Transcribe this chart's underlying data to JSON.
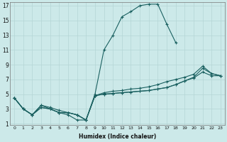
{
  "xlabel": "Humidex (Indice chaleur)",
  "bg_color": "#cce9e9",
  "grid_color": "#b5d5d5",
  "line_color": "#1a6060",
  "xlim_min": -0.5,
  "xlim_max": 23.5,
  "ylim_min": 0.8,
  "ylim_max": 17.5,
  "yticks": [
    1,
    3,
    5,
    7,
    9,
    11,
    13,
    15,
    17
  ],
  "xticks": [
    0,
    1,
    2,
    3,
    4,
    5,
    6,
    7,
    8,
    9,
    10,
    11,
    12,
    13,
    14,
    15,
    16,
    17,
    18,
    19,
    20,
    21,
    22,
    23
  ],
  "curves": [
    {
      "x": [
        0,
        1,
        2,
        3,
        4,
        5,
        6,
        7,
        8,
        9,
        10,
        11,
        12,
        13,
        14,
        15,
        16,
        17,
        18
      ],
      "y": [
        4.5,
        3.0,
        2.2,
        3.5,
        3.0,
        2.5,
        2.2,
        1.5,
        1.5,
        5.0,
        11.0,
        13.0,
        15.5,
        16.2,
        17.0,
        17.2,
        17.2,
        14.5,
        12.0
      ]
    },
    {
      "x": [
        0,
        1,
        2,
        3,
        4,
        5,
        6,
        7,
        8,
        9,
        10,
        11,
        12,
        13,
        14,
        15,
        16,
        17,
        18,
        19,
        20,
        21,
        22,
        23
      ],
      "y": [
        4.5,
        3.0,
        2.2,
        3.2,
        3.0,
        2.5,
        2.5,
        2.2,
        1.5,
        4.8,
        5.0,
        5.1,
        5.2,
        5.3,
        5.4,
        5.5,
        5.7,
        5.9,
        6.3,
        6.8,
        7.3,
        8.5,
        7.8,
        7.5
      ]
    },
    {
      "x": [
        0,
        1,
        2,
        3,
        4,
        5,
        6,
        7,
        8,
        9,
        10,
        11,
        12,
        13,
        14,
        15,
        16,
        17,
        18,
        19,
        20,
        21,
        22,
        23
      ],
      "y": [
        4.5,
        3.0,
        2.2,
        3.2,
        3.0,
        2.5,
        2.5,
        2.2,
        1.5,
        4.8,
        5.0,
        5.1,
        5.2,
        5.3,
        5.4,
        5.5,
        5.7,
        5.9,
        6.3,
        6.8,
        7.2,
        8.0,
        7.5,
        7.5
      ]
    },
    {
      "x": [
        0,
        1,
        2,
        3,
        4,
        5,
        6,
        7,
        8,
        9,
        10,
        11,
        12,
        13,
        14,
        15,
        16,
        17,
        18,
        19,
        20,
        21,
        22,
        23
      ],
      "y": [
        4.5,
        3.0,
        2.2,
        3.5,
        3.2,
        2.8,
        2.5,
        2.2,
        1.5,
        4.8,
        5.2,
        5.4,
        5.5,
        5.7,
        5.8,
        6.0,
        6.3,
        6.7,
        7.0,
        7.3,
        7.7,
        8.8,
        7.8,
        7.5
      ]
    }
  ]
}
